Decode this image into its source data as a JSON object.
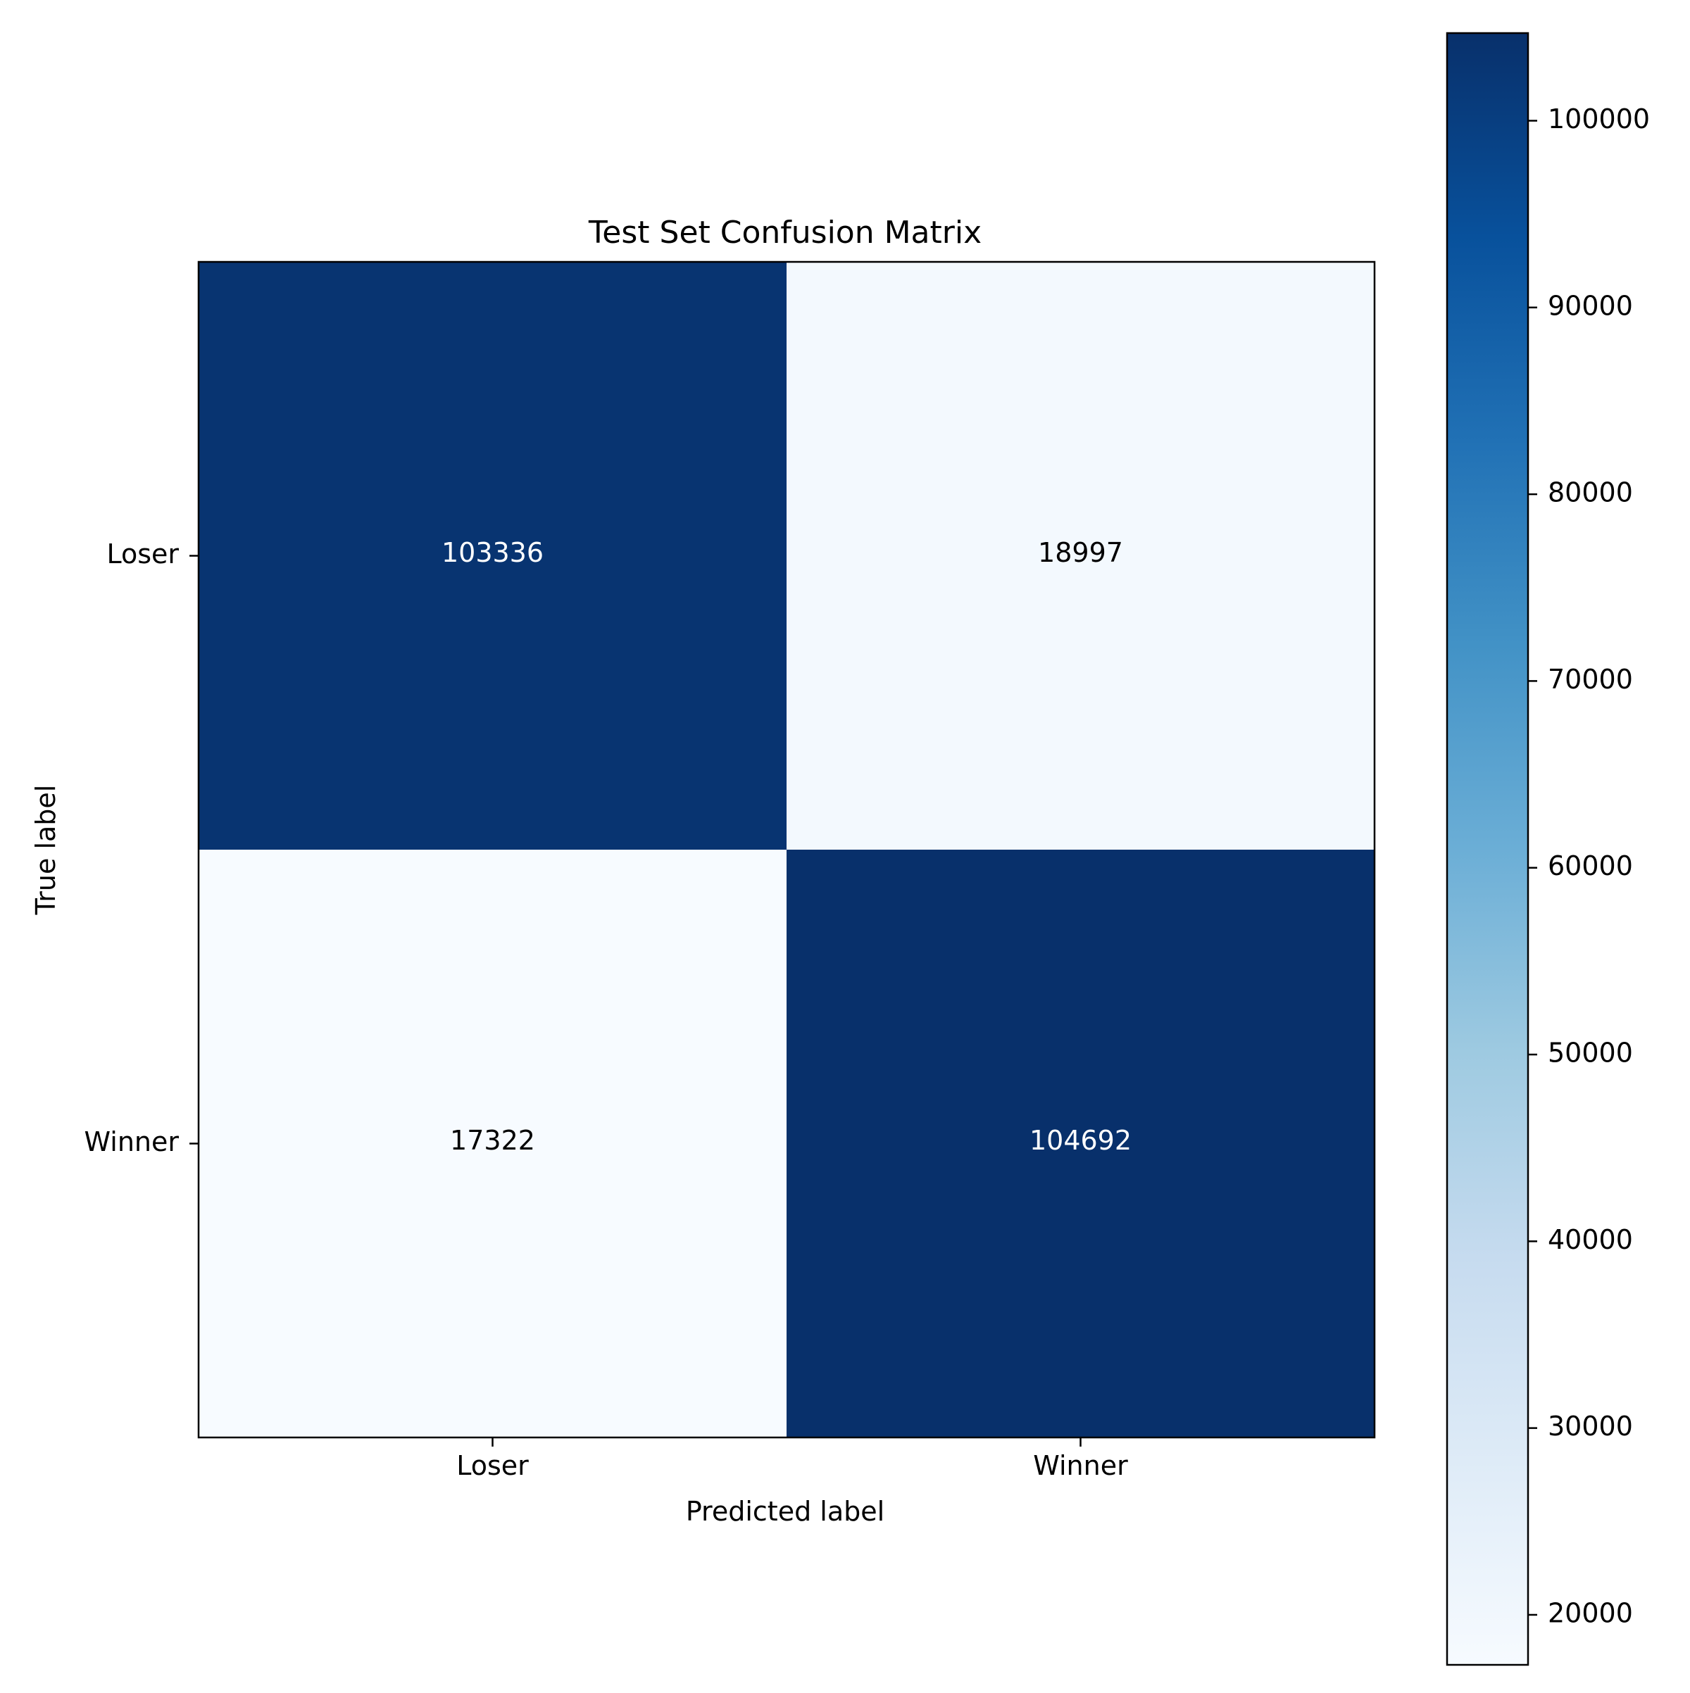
{
  "chart_data": {
    "type": "heatmap",
    "title": "Test Set Confusion Matrix",
    "xlabel": "Predicted label",
    "ylabel": "True label",
    "x_categories": [
      "Loser",
      "Winner"
    ],
    "y_categories": [
      "Loser",
      "Winner"
    ],
    "values": [
      [
        103336,
        18997
      ],
      [
        17322,
        104692
      ]
    ],
    "colormap": "Blues",
    "colorbar": {
      "min": 17322,
      "max": 104692,
      "ticks": [
        20000,
        30000,
        40000,
        50000,
        60000,
        70000,
        80000,
        90000,
        100000
      ],
      "tick_labels": [
        "20000",
        "30000",
        "40000",
        "50000",
        "60000",
        "70000",
        "80000",
        "90000",
        "100000"
      ]
    },
    "grid": false
  }
}
